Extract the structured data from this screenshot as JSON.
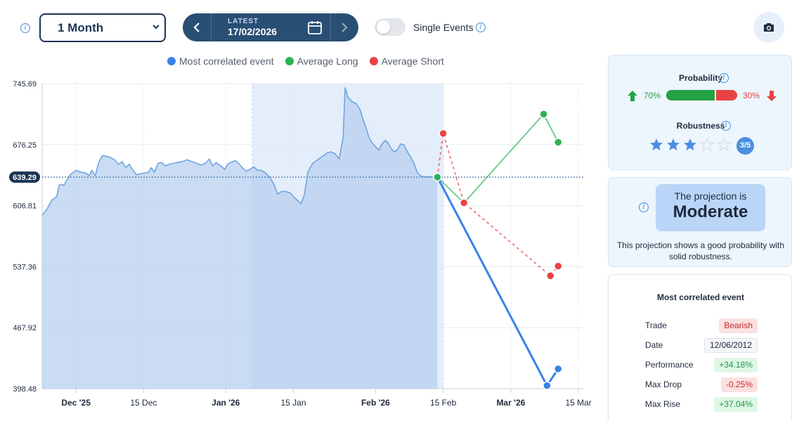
{
  "toolbar": {
    "period_value": "1 Month",
    "latest_label": "LATEST",
    "latest_date": "17/02/2026",
    "single_events_label": "Single Events",
    "single_events_on": false
  },
  "legend": [
    {
      "label": "Most correlated event",
      "color": "#3b82e6"
    },
    {
      "label": "Average Long",
      "color": "#2bb456"
    },
    {
      "label": "Average Short",
      "color": "#e84343"
    }
  ],
  "chart_data": {
    "type": "line",
    "y_ticks": [
      "745.69",
      "676.25",
      "606.81",
      "537.36",
      "467.92",
      "398.48"
    ],
    "ylim": [
      398.48,
      745.69
    ],
    "x_ticks": [
      {
        "label": "Dec '25",
        "bold": true
      },
      {
        "label": "15 Dec",
        "bold": false
      },
      {
        "label": "Jan '26",
        "bold": true
      },
      {
        "label": "15 Jan",
        "bold": false
      },
      {
        "label": "Feb '26",
        "bold": true
      },
      {
        "label": "15 Feb",
        "bold": false
      },
      {
        "label": "Mar '26",
        "bold": true
      },
      {
        "label": "15 Mar",
        "bold": false
      }
    ],
    "x_tick_days": [
      30,
      44,
      61,
      75,
      92,
      106,
      120,
      134
    ],
    "xlim": [
      23,
      135
    ],
    "current_value": "639.29",
    "current_level": 639.29,
    "highlight_days": [
      66.5,
      106
    ],
    "history": [
      [
        23,
        596
      ],
      [
        24,
        603
      ],
      [
        25,
        613
      ],
      [
        26,
        617
      ],
      [
        26.5,
        630
      ],
      [
        27,
        631
      ],
      [
        27.5,
        630
      ],
      [
        28.2,
        637
      ],
      [
        29,
        643
      ],
      [
        30,
        647
      ],
      [
        31,
        645
      ],
      [
        32,
        644
      ],
      [
        32.7,
        641
      ],
      [
        33.3,
        647
      ],
      [
        34,
        641
      ],
      [
        34.7,
        656
      ],
      [
        35.5,
        664
      ],
      [
        36.2,
        663
      ],
      [
        37,
        662
      ],
      [
        38,
        659
      ],
      [
        38.8,
        654
      ],
      [
        39.6,
        657
      ],
      [
        40.3,
        650
      ],
      [
        41,
        654
      ],
      [
        41.7,
        648
      ],
      [
        42.5,
        642
      ],
      [
        43.3,
        643
      ],
      [
        44.1,
        644
      ],
      [
        45,
        645
      ],
      [
        45.6,
        650
      ],
      [
        46.2,
        645
      ],
      [
        47,
        655
      ],
      [
        47.7,
        656
      ],
      [
        48.5,
        652
      ],
      [
        49.3,
        654
      ],
      [
        50.1,
        655
      ],
      [
        51,
        656
      ],
      [
        52,
        657
      ],
      [
        53,
        659
      ],
      [
        54,
        657
      ],
      [
        55,
        655
      ],
      [
        56,
        653
      ],
      [
        57,
        656
      ],
      [
        57.6,
        660
      ],
      [
        58.3,
        652
      ],
      [
        59,
        656
      ],
      [
        60,
        652
      ],
      [
        60.8,
        648
      ],
      [
        61.4,
        654
      ],
      [
        62,
        656
      ],
      [
        63,
        658
      ],
      [
        63.8,
        654
      ],
      [
        64.6,
        649
      ],
      [
        65.3,
        646
      ],
      [
        66,
        648
      ],
      [
        66.8,
        651
      ],
      [
        67.6,
        647
      ],
      [
        68.4,
        647
      ],
      [
        69.2,
        644
      ],
      [
        70,
        640
      ],
      [
        71,
        631
      ],
      [
        71.7,
        620
      ],
      [
        72.6,
        623
      ],
      [
        73.5,
        623
      ],
      [
        74.4,
        621
      ],
      [
        75.2,
        616
      ],
      [
        76,
        612
      ],
      [
        76.6,
        609
      ],
      [
        77.3,
        620
      ],
      [
        78,
        645
      ],
      [
        79,
        655
      ],
      [
        80,
        659
      ],
      [
        81,
        663
      ],
      [
        82,
        667
      ],
      [
        82.8,
        668
      ],
      [
        83.6,
        666
      ],
      [
        84.5,
        660
      ],
      [
        85.3,
        685
      ],
      [
        85.7,
        741
      ],
      [
        86.3,
        730
      ],
      [
        87.2,
        725
      ],
      [
        88,
        723
      ],
      [
        88.8,
        716
      ],
      [
        89.4,
        705
      ],
      [
        90,
        696
      ],
      [
        90.6,
        685
      ],
      [
        91.2,
        679
      ],
      [
        92,
        674
      ],
      [
        92.7,
        670
      ],
      [
        93.3,
        677
      ],
      [
        94,
        681
      ],
      [
        94.6,
        678
      ],
      [
        95.3,
        671
      ],
      [
        95.9,
        668
      ],
      [
        96.6,
        671
      ],
      [
        97.2,
        677
      ],
      [
        97.9,
        676
      ],
      [
        98.5,
        669
      ],
      [
        99.2,
        663
      ],
      [
        100,
        654
      ],
      [
        100.7,
        644
      ],
      [
        101.5,
        640
      ],
      [
        102.5,
        639.5
      ],
      [
        103.5,
        639.5
      ],
      [
        104.8,
        639.29
      ]
    ],
    "series": [
      {
        "name": "Most correlated event",
        "color": "#3b82e6",
        "dashed": false,
        "points": [
          [
            104.8,
            639.29
          ],
          [
            127.5,
            402
          ],
          [
            129.8,
            421
          ]
        ]
      },
      {
        "name": "Average Long",
        "color": "#2bb456",
        "dashed": false,
        "points": [
          [
            104.8,
            639.29
          ],
          [
            110.3,
            610
          ],
          [
            126.8,
            711
          ],
          [
            129.8,
            679
          ]
        ]
      },
      {
        "name": "Average Short",
        "color": "#e84343",
        "dashed": true,
        "points": [
          [
            104.8,
            639.29
          ],
          [
            106,
            689
          ],
          [
            110.3,
            610
          ],
          [
            128.2,
            527
          ],
          [
            129.8,
            538
          ]
        ]
      }
    ]
  },
  "probability": {
    "label": "Probability",
    "long_pct": "70%",
    "short_pct": "30%",
    "long_fraction": 0.7
  },
  "robustness": {
    "label": "Robustness",
    "score": 3,
    "max": 5,
    "badge": "3/5"
  },
  "projection": {
    "pre_label": "The projection is",
    "level": "Moderate",
    "description": "This projection shows a good probability with solid robustness."
  },
  "correlated_event": {
    "title": "Most correlated event",
    "rows": [
      {
        "key": "Trade",
        "value": "Bearish",
        "style": "bear"
      },
      {
        "key": "Date",
        "value": "12/06/2012",
        "style": "neutral"
      },
      {
        "key": "Performance",
        "value": "+34.18%",
        "style": "pos"
      },
      {
        "key": "Max Drop",
        "value": "-0.25%",
        "style": "neg"
      },
      {
        "key": "Max Rise",
        "value": "+37.04%",
        "style": "pos"
      }
    ]
  }
}
